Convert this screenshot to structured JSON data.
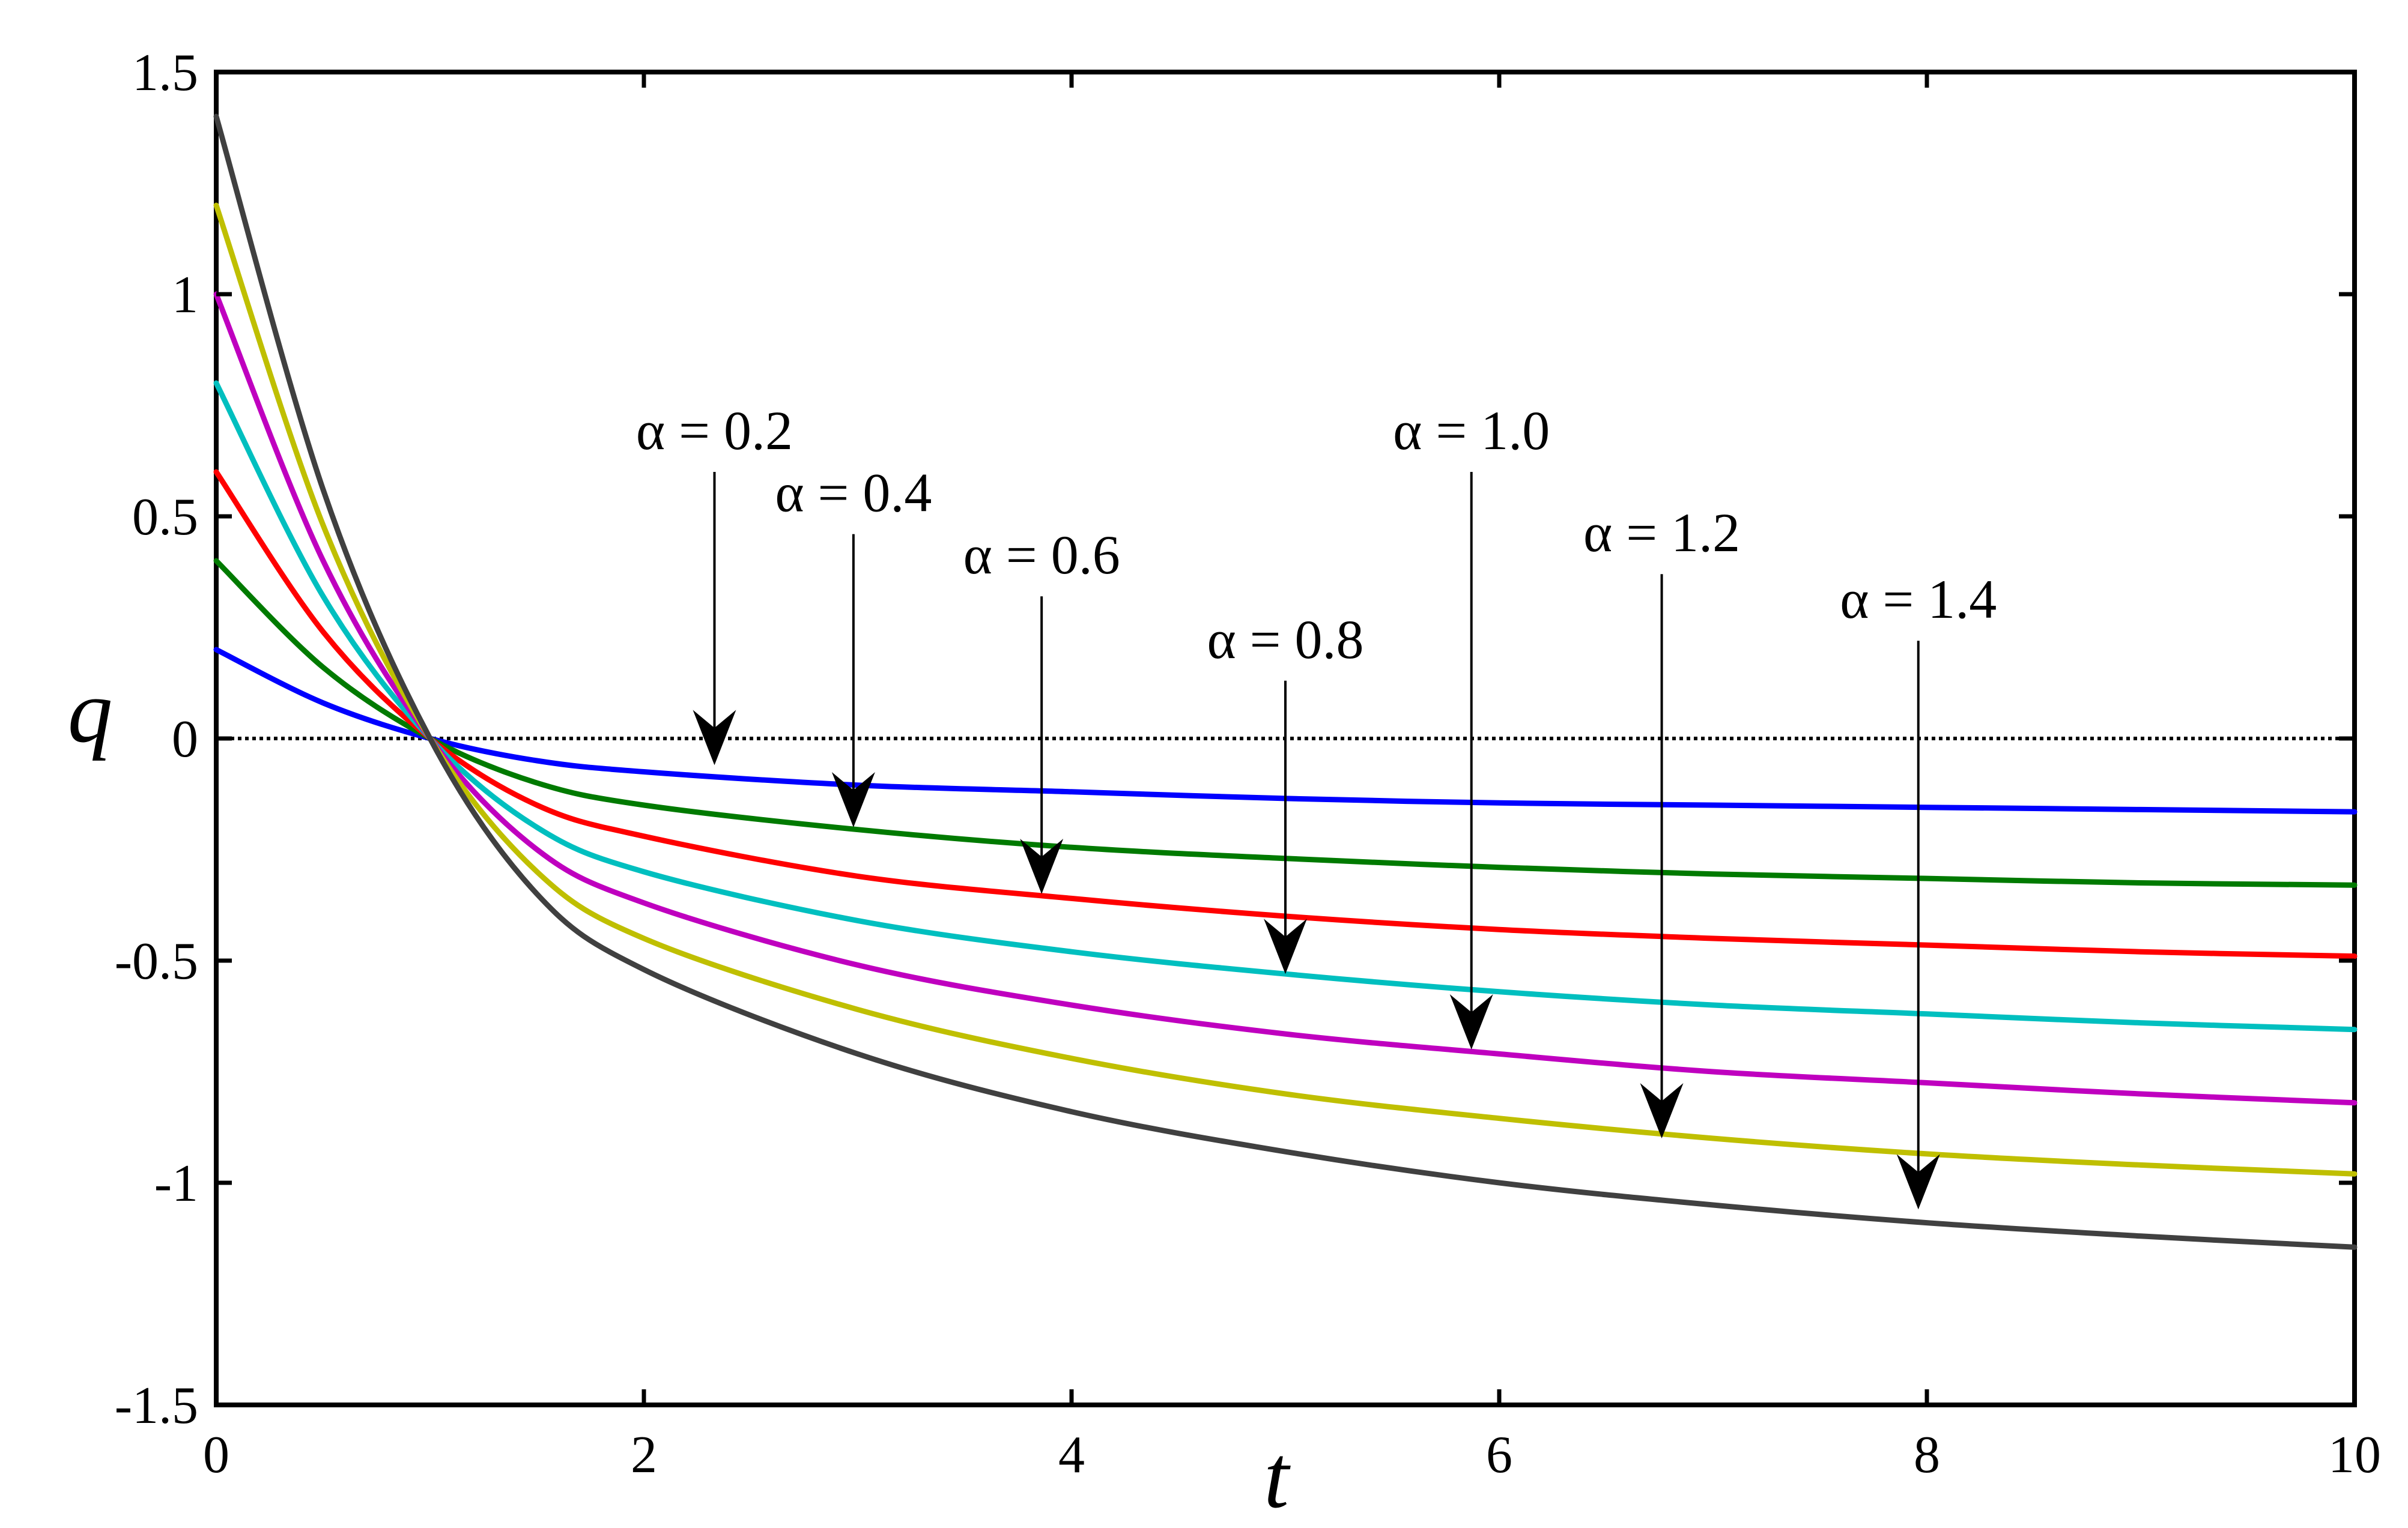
{
  "chart_data": {
    "type": "line",
    "title": "",
    "xlabel": "t",
    "ylabel": "q",
    "xlim": [
      0,
      10
    ],
    "ylim": [
      -1.5,
      1.5
    ],
    "xticks": [
      "0",
      "2",
      "4",
      "6",
      "8",
      "10"
    ],
    "yticks": [
      "1.5",
      "1",
      "0.5",
      "0",
      "-0.5",
      "-1",
      "-1.5"
    ],
    "grid": false,
    "legend": "none",
    "reference_line": {
      "y": 0,
      "style": "dotted",
      "color": "#000000"
    },
    "x": [
      0,
      0.5,
      1,
      1.5,
      2,
      3,
      4,
      5,
      6,
      7,
      8,
      9,
      10
    ],
    "series": [
      {
        "color": "#0000ff",
        "values": [
          0.2,
          0.08,
          0,
          -0.05,
          -0.075,
          -0.105,
          -0.12,
          -0.135,
          -0.145,
          -0.15,
          -0.155,
          -0.16,
          -0.165
        ]
      },
      {
        "color": "#007a00",
        "values": [
          0.4,
          0.16,
          0,
          -0.1,
          -0.15,
          -0.205,
          -0.245,
          -0.27,
          -0.29,
          -0.305,
          -0.315,
          -0.325,
          -0.33
        ]
      },
      {
        "color": "#ff0000",
        "values": [
          0.6,
          0.24,
          0,
          -0.15,
          -0.22,
          -0.31,
          -0.36,
          -0.4,
          -0.43,
          -0.45,
          -0.465,
          -0.48,
          -0.49
        ]
      },
      {
        "color": "#00bfbf",
        "values": [
          0.8,
          0.32,
          0,
          -0.2,
          -0.3,
          -0.41,
          -0.48,
          -0.53,
          -0.57,
          -0.6,
          -0.62,
          -0.64,
          -0.655
        ]
      },
      {
        "color": "#bf00bf",
        "values": [
          1.0,
          0.4,
          0,
          -0.25,
          -0.37,
          -0.51,
          -0.6,
          -0.665,
          -0.71,
          -0.75,
          -0.775,
          -0.8,
          -0.82
        ]
      },
      {
        "color": "#bfbf00",
        "values": [
          1.2,
          0.48,
          0,
          -0.3,
          -0.45,
          -0.61,
          -0.72,
          -0.8,
          -0.855,
          -0.9,
          -0.935,
          -0.96,
          -0.98
        ]
      },
      {
        "color": "#404040",
        "values": [
          1.4,
          0.56,
          0,
          -0.35,
          -0.52,
          -0.71,
          -0.84,
          -0.93,
          -1.0,
          -1.05,
          -1.09,
          -1.12,
          -1.145
        ]
      }
    ],
    "annotations": [
      {
        "text": "α = 0.2",
        "arrow_from": [
          2.33,
          0.6
        ],
        "arrow_to": [
          2.33,
          -0.06
        ]
      },
      {
        "text": "α = 0.4",
        "arrow_from": [
          2.98,
          0.46
        ],
        "arrow_to": [
          2.98,
          -0.2
        ]
      },
      {
        "text": "α = 0.6",
        "arrow_from": [
          3.86,
          0.32
        ],
        "arrow_to": [
          3.86,
          -0.35
        ]
      },
      {
        "text": "α = 0.8",
        "arrow_from": [
          5.0,
          0.13
        ],
        "arrow_to": [
          5.0,
          -0.53
        ]
      },
      {
        "text": "α = 1.0",
        "arrow_from": [
          5.87,
          0.6
        ],
        "arrow_to": [
          5.87,
          -0.7
        ]
      },
      {
        "text": "α = 1.2",
        "arrow_from": [
          6.76,
          0.37
        ],
        "arrow_to": [
          6.76,
          -0.9
        ]
      },
      {
        "text": "α = 1.4",
        "arrow_from": [
          7.96,
          0.22
        ],
        "arrow_to": [
          7.96,
          -1.06
        ]
      }
    ]
  }
}
